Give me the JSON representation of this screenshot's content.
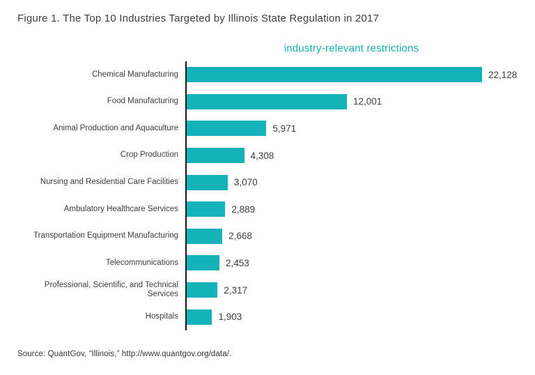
{
  "figure": {
    "title": "Figure 1. The Top 10 Industries Targeted by Illinois State Regulation in 2017",
    "source": "Source: QuantGov, “Illinois,” http://www.quantgov.org/data/."
  },
  "colors": {
    "bar": "#16b2ba",
    "header": "#16b2ba",
    "axis": "#1a1a1a",
    "text": "#3d3d3d"
  },
  "chart_data": {
    "type": "bar",
    "orientation": "horizontal",
    "title": "industry-relevant restrictions",
    "xlabel": "",
    "ylabel": "",
    "xlim": [
      0,
      22128
    ],
    "grid": false,
    "legend": false,
    "categories": [
      "Chemical Manufacturing",
      "Food Manufacturing",
      "Animal Production and Aquaculture",
      "Crop Production",
      "Nursing and Residential Care Facilities",
      "Ambulatory Healthcare Services",
      "Transportation Equipment Manufacturing",
      "Telecommunications",
      "Professional, Scientific, and Technical Services",
      "Hospitals"
    ],
    "values": [
      22128,
      12001,
      5971,
      4308,
      3070,
      2889,
      2668,
      2453,
      2317,
      1903
    ],
    "value_labels": [
      "22,128",
      "12,001",
      "5,971",
      "4,308",
      "3,070",
      "2,889",
      "2,668",
      "2,453",
      "2,317",
      "1,903"
    ]
  }
}
